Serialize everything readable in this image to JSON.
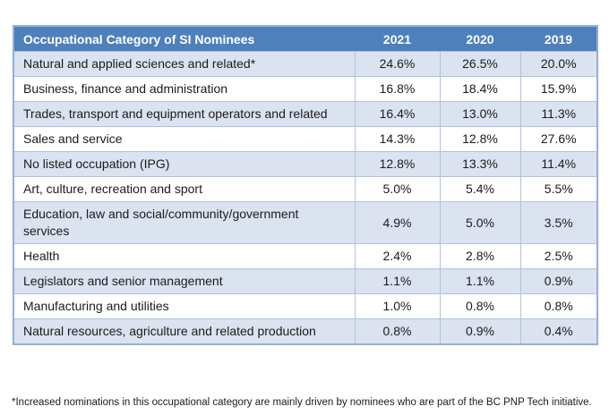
{
  "table": {
    "header": {
      "category_label": "Occupational Category of SI Nominees",
      "years": [
        "2021",
        "2020",
        "2019"
      ]
    },
    "rows": [
      {
        "category": "Natural and applied sciences and related*",
        "values": [
          "24.6%",
          "26.5%",
          "20.0%"
        ]
      },
      {
        "category": "Business, finance and administration",
        "values": [
          "16.8%",
          "18.4%",
          "15.9%"
        ]
      },
      {
        "category": "Trades, transport and equipment operators and related",
        "values": [
          "16.4%",
          "13.0%",
          "11.3%"
        ]
      },
      {
        "category": "Sales and service",
        "values": [
          "14.3%",
          "12.8%",
          "27.6%"
        ]
      },
      {
        "category": "No listed occupation (IPG)",
        "values": [
          "12.8%",
          "13.3%",
          "11.4%"
        ]
      },
      {
        "category": "Art, culture, recreation and sport",
        "values": [
          "5.0%",
          "5.4%",
          "5.5%"
        ]
      },
      {
        "category": "Education, law and social/community/government services",
        "values": [
          "4.9%",
          "5.0%",
          "3.5%"
        ]
      },
      {
        "category": "Health",
        "values": [
          "2.4%",
          "2.8%",
          "2.5%"
        ]
      },
      {
        "category": "Legislators and senior management",
        "values": [
          "1.1%",
          "1.1%",
          "0.9%"
        ]
      },
      {
        "category": "Manufacturing and utilities",
        "values": [
          "1.0%",
          "0.8%",
          "0.8%"
        ]
      },
      {
        "category": "Natural resources, agriculture and related production",
        "values": [
          "0.8%",
          "0.9%",
          "0.4%"
        ]
      }
    ]
  },
  "footnote": "*Increased nominations in this occupational category are mainly driven by nominees who are part of the BC PNP Tech initiative.",
  "colors": {
    "header_bg": "#4e80bc",
    "header_text": "#ffffff",
    "row_alt_bg": "#dbe2f0",
    "row_bg": "#ffffff",
    "grid_line": "#aec3e0",
    "outer_border": "#93afd6",
    "body_text": "#1b1b1b"
  }
}
